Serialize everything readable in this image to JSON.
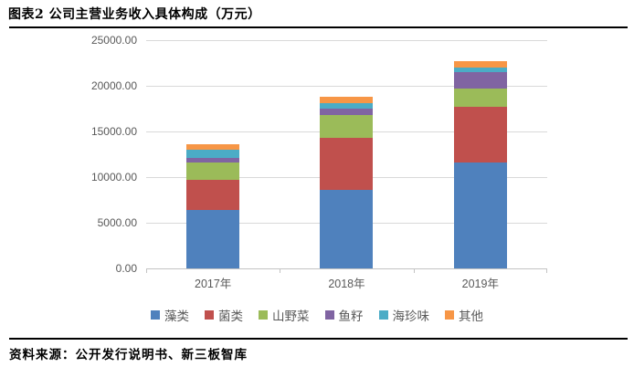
{
  "figure": {
    "title": "图表2 公司主营业务收入具体构成（万元）",
    "source": "资料来源：公开发行说明书、新三板智库"
  },
  "chart_data": {
    "type": "bar",
    "stacked": true,
    "title": "",
    "xlabel": "",
    "ylabel": "",
    "unit": "万元",
    "categories": [
      "2017年",
      "2018年",
      "2019年"
    ],
    "series": [
      {
        "name": "藻类",
        "color": "#4F81BD",
        "values": [
          6400,
          8630,
          11630
        ]
      },
      {
        "name": "菌类",
        "color": "#C0504D",
        "values": [
          3300,
          5700,
          6100
        ]
      },
      {
        "name": "山野菜",
        "color": "#9BBB59",
        "values": [
          1930,
          2470,
          2000
        ]
      },
      {
        "name": "鱼籽",
        "color": "#8064A2",
        "values": [
          440,
          730,
          1770
        ]
      },
      {
        "name": "海珍味",
        "color": "#4BACC6",
        "values": [
          900,
          600,
          500
        ]
      },
      {
        "name": "其他",
        "color": "#F79646",
        "values": [
          660,
          670,
          730
        ]
      }
    ],
    "totals": [
      13630,
      18800,
      22730
    ],
    "ylim": [
      0,
      25000
    ],
    "y_ticks": [
      "0.00",
      "5000.00",
      "10000.00",
      "15000.00",
      "20000.00",
      "25000.00"
    ],
    "grid": true,
    "legend_position": "bottom",
    "gridline_color": "#d9d9d9",
    "axis_text_color": "#595959"
  }
}
